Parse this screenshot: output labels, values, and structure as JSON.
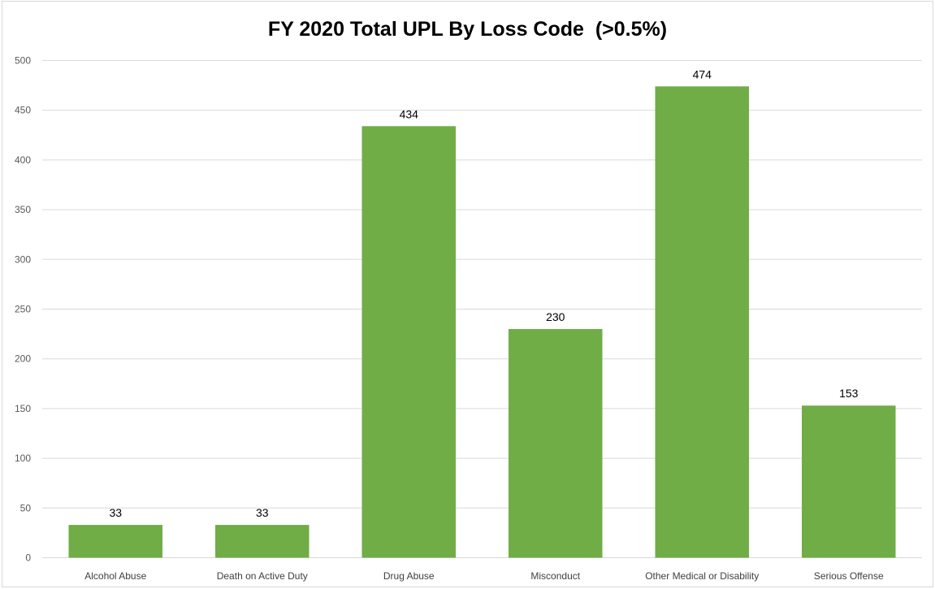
{
  "chart_data": {
    "type": "bar",
    "title": "FY 2020 Total UPL By Loss Code  (>0.5%)",
    "xlabel": "",
    "ylabel": "",
    "categories": [
      "Alcohol Abuse",
      "Death on Active Duty",
      "Drug Abuse",
      "Misconduct",
      "Other Medical or Disability",
      "Serious Offense"
    ],
    "values": [
      33,
      33,
      434,
      230,
      474,
      153
    ],
    "data_labels": [
      "33",
      "33",
      "434",
      "230",
      "474",
      "153"
    ],
    "ylim": [
      0,
      500
    ],
    "yticks": [
      0,
      50,
      100,
      150,
      200,
      250,
      300,
      350,
      400,
      450,
      500
    ],
    "grid": true,
    "legend": "none",
    "bar_color": "#70ad47",
    "gridline_color": "#d9d9d9"
  }
}
